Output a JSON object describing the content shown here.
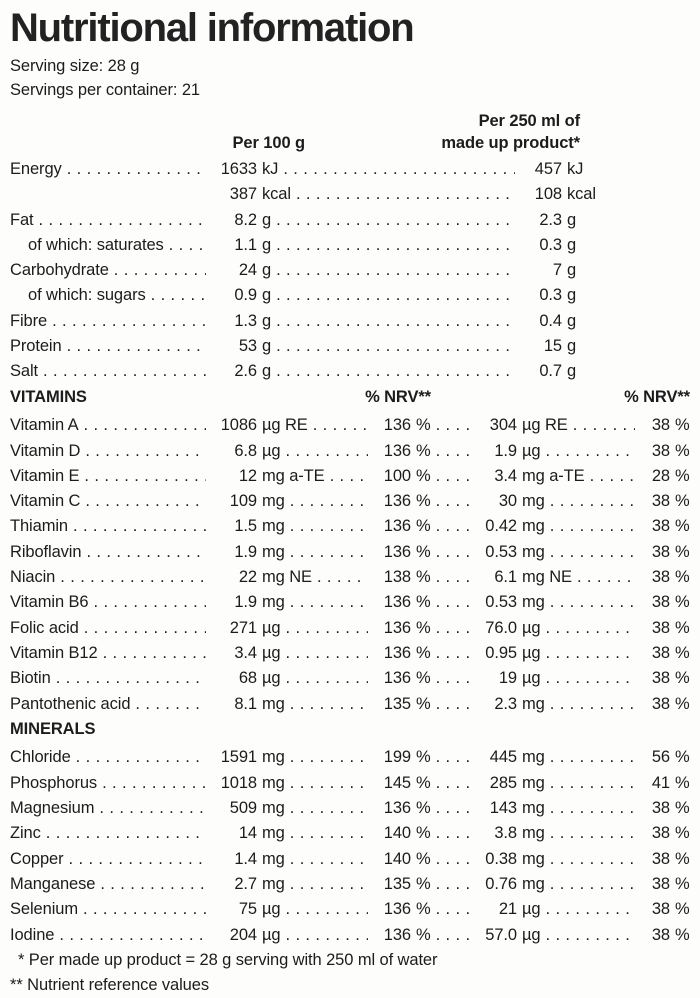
{
  "title": "Nutritional information",
  "serving_size": "Serving size: 28 g",
  "servings_per_container": "Servings per container: 21",
  "column_headers": {
    "per_100g": "Per 100 g",
    "per_250ml_line1": "Per 250 ml of",
    "per_250ml_line2": "made up product*",
    "nrv": "% NRV**"
  },
  "units": {
    "percent": "%"
  },
  "section_headers": {
    "vitamins": "VITAMINS",
    "minerals": "MINERALS"
  },
  "macro_rows": [
    {
      "label": "Energy",
      "per100_value": "1633",
      "per100_unit": "kJ",
      "per250_value": "457",
      "per250_unit": "kJ"
    },
    {
      "label": "",
      "continuation": true,
      "per100_value": "387",
      "per100_unit": "kcal",
      "per250_value": "108",
      "per250_unit": "kcal"
    },
    {
      "label": "Fat",
      "per100_value": "8.2",
      "per100_unit": "g",
      "per250_value": "2.3",
      "per250_unit": "g"
    },
    {
      "label": "of which: saturates",
      "indent": true,
      "per100_value": "1.1",
      "per100_unit": "g",
      "per250_value": "0.3",
      "per250_unit": "g"
    },
    {
      "label": "Carbohydrate",
      "per100_value": "24",
      "per100_unit": "g",
      "per250_value": "7",
      "per250_unit": "g"
    },
    {
      "label": "of which: sugars",
      "indent": true,
      "per100_value": "0.9",
      "per100_unit": "g",
      "per250_value": "0.3",
      "per250_unit": "g"
    },
    {
      "label": "Fibre",
      "per100_value": "1.3",
      "per100_unit": "g",
      "per250_value": "0.4",
      "per250_unit": "g"
    },
    {
      "label": "Protein",
      "per100_value": "53",
      "per100_unit": "g",
      "per250_value": "15",
      "per250_unit": "g"
    },
    {
      "label": "Salt",
      "per100_value": "2.6",
      "per100_unit": "g",
      "per250_value": "0.7",
      "per250_unit": "g"
    }
  ],
  "vitamin_rows": [
    {
      "label": "Vitamin A",
      "per100_value": "1086",
      "per100_unit": "µg RE",
      "nrv_per100": "136",
      "per250_value": "304",
      "per250_unit": "µg RE",
      "nrv_per250": "38"
    },
    {
      "label": "Vitamin D",
      "per100_value": "6.8",
      "per100_unit": "µg",
      "nrv_per100": "136",
      "per250_value": "1.9",
      "per250_unit": "µg",
      "nrv_per250": "38"
    },
    {
      "label": "Vitamin E",
      "per100_value": "12",
      "per100_unit": "mg a-TE",
      "nrv_per100": "100",
      "per250_value": "3.4",
      "per250_unit": "mg a-TE",
      "nrv_per250": "28"
    },
    {
      "label": "Vitamin C",
      "per100_value": "109",
      "per100_unit": "mg",
      "nrv_per100": "136",
      "per250_value": "30",
      "per250_unit": "mg",
      "nrv_per250": "38"
    },
    {
      "label": "Thiamin",
      "per100_value": "1.5",
      "per100_unit": "mg",
      "nrv_per100": "136",
      "per250_value": "0.42",
      "per250_unit": "mg",
      "nrv_per250": "38"
    },
    {
      "label": "Riboflavin",
      "per100_value": "1.9",
      "per100_unit": "mg",
      "nrv_per100": "136",
      "per250_value": "0.53",
      "per250_unit": "mg",
      "nrv_per250": "38"
    },
    {
      "label": "Niacin",
      "per100_value": "22",
      "per100_unit": "mg NE",
      "nrv_per100": "138",
      "per250_value": "6.1",
      "per250_unit": "mg NE",
      "nrv_per250": "38"
    },
    {
      "label": "Vitamin B6",
      "per100_value": "1.9",
      "per100_unit": "mg",
      "nrv_per100": "136",
      "per250_value": "0.53",
      "per250_unit": "mg",
      "nrv_per250": "38"
    },
    {
      "label": "Folic acid",
      "per100_value": "271",
      "per100_unit": "µg",
      "nrv_per100": "136",
      "per250_value": "76.0",
      "per250_unit": "µg",
      "nrv_per250": "38"
    },
    {
      "label": "Vitamin B12",
      "per100_value": "3.4",
      "per100_unit": "µg",
      "nrv_per100": "136",
      "per250_value": "0.95",
      "per250_unit": "µg",
      "nrv_per250": "38"
    },
    {
      "label": "Biotin",
      "per100_value": "68",
      "per100_unit": "µg",
      "nrv_per100": "136",
      "per250_value": "19",
      "per250_unit": "µg",
      "nrv_per250": "38"
    },
    {
      "label": "Pantothenic acid",
      "per100_value": "8.1",
      "per100_unit": "mg",
      "nrv_per100": "135",
      "per250_value": "2.3",
      "per250_unit": "mg",
      "nrv_per250": "38"
    }
  ],
  "mineral_rows": [
    {
      "label": "Chloride",
      "per100_value": "1591",
      "per100_unit": "mg",
      "nrv_per100": "199",
      "per250_value": "445",
      "per250_unit": "mg",
      "nrv_per250": "56"
    },
    {
      "label": "Phosphorus",
      "per100_value": "1018",
      "per100_unit": "mg",
      "nrv_per100": "145",
      "per250_value": "285",
      "per250_unit": "mg",
      "nrv_per250": "41"
    },
    {
      "label": "Magnesium",
      "per100_value": "509",
      "per100_unit": "mg",
      "nrv_per100": "136",
      "per250_value": "143",
      "per250_unit": "mg",
      "nrv_per250": "38"
    },
    {
      "label": "Zinc",
      "per100_value": "14",
      "per100_unit": "mg",
      "nrv_per100": "140",
      "per250_value": "3.8",
      "per250_unit": "mg",
      "nrv_per250": "38"
    },
    {
      "label": "Copper",
      "per100_value": "1.4",
      "per100_unit": "mg",
      "nrv_per100": "140",
      "per250_value": "0.38",
      "per250_unit": "mg",
      "nrv_per250": "38"
    },
    {
      "label": "Manganese",
      "per100_value": "2.7",
      "per100_unit": "mg",
      "nrv_per100": "135",
      "per250_value": "0.76",
      "per250_unit": "mg",
      "nrv_per250": "38"
    },
    {
      "label": "Selenium",
      "per100_value": "75",
      "per100_unit": "µg",
      "nrv_per100": "136",
      "per250_value": "21",
      "per250_unit": "µg",
      "nrv_per250": "38"
    },
    {
      "label": "Iodine",
      "per100_value": "204",
      "per100_unit": "µg",
      "nrv_per100": "136",
      "per250_value": "57.0",
      "per250_unit": "µg",
      "nrv_per250": "38"
    }
  ],
  "footnotes": [
    "* Per made up product = 28 g serving with 250 ml of water",
    "** Nutrient reference values"
  ]
}
